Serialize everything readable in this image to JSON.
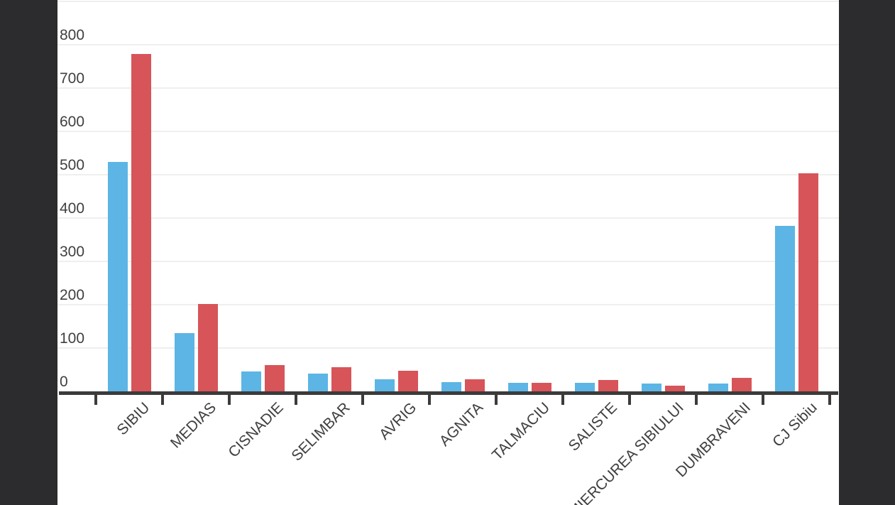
{
  "chart_data": {
    "type": "bar",
    "title": "",
    "xlabel": "",
    "ylabel": "",
    "categories": [
      "SIBIU",
      "MEDIAS",
      "CISNADIE",
      "SELIMBAR",
      "AVRIG",
      "AGNITA",
      "TALMACIU",
      "SALISTE",
      "MIERCUREA SIBIULUI",
      "DUMBRAVENI",
      "CJ Sibiu"
    ],
    "series": [
      {
        "name": "series-blue",
        "color": "#5cb5e4",
        "values": [
          530,
          134,
          46,
          41,
          28,
          21,
          20,
          20,
          18,
          18,
          382
        ]
      },
      {
        "name": "series-red",
        "color": "#d75459",
        "values": [
          778,
          202,
          61,
          56,
          48,
          28,
          19,
          26,
          13,
          31,
          503
        ]
      }
    ],
    "ylim": [
      0,
      900
    ],
    "y_ticks": [
      0,
      100,
      200,
      300,
      400,
      500,
      600,
      700,
      800
    ],
    "grid": true,
    "legend_position": "none",
    "x_tick_label_rotation_deg": 45
  },
  "colors": {
    "background": "#ffffff",
    "letterbox": "#2c2c2e",
    "gridline": "#efefee",
    "axis": "#3b3b3b",
    "label_text": "#3f3f3f"
  }
}
